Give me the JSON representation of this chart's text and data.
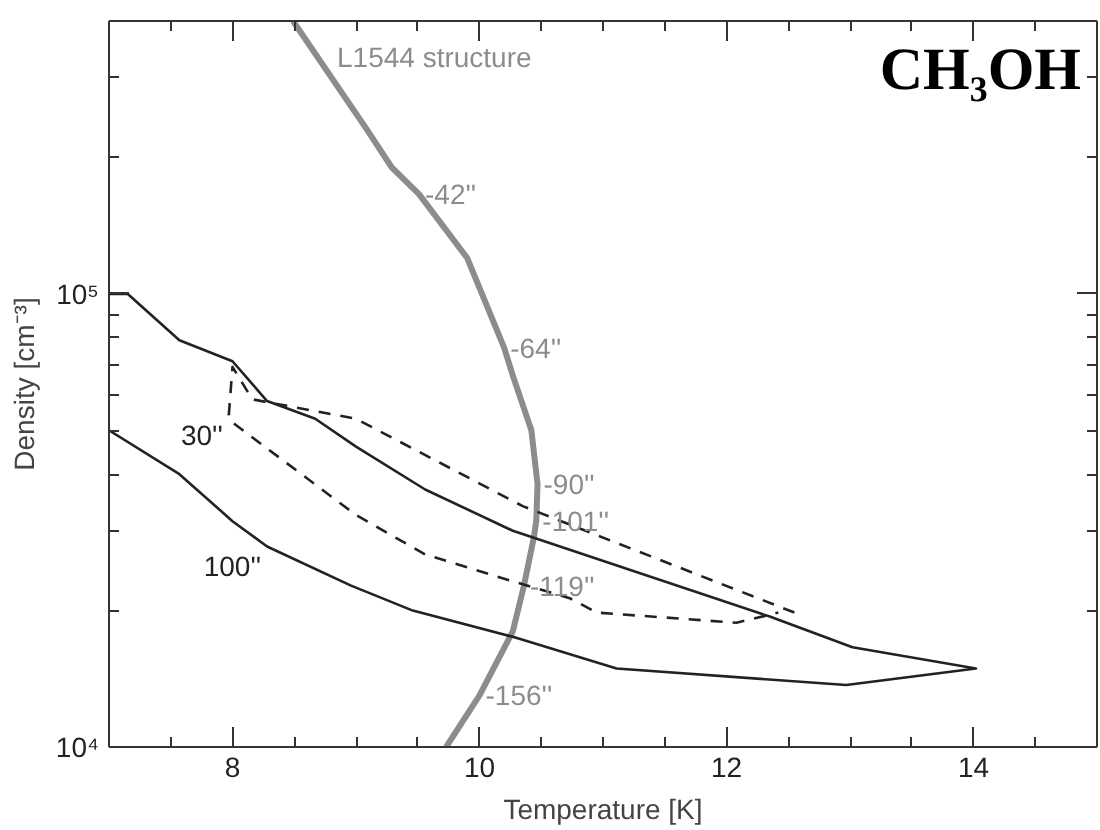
{
  "chart_data": {
    "type": "line",
    "xlabel": "Temperature [K]",
    "ylabel": "Density [cm⁻³]",
    "xlim": [
      7,
      15
    ],
    "ylim": [
      10000,
      400000
    ],
    "log": "y",
    "grid": false,
    "xticks": [
      {
        "value": 7.5,
        "label": null
      },
      8,
      {
        "value": 8.5,
        "label": null
      },
      {
        "value": 9,
        "label": null
      },
      {
        "value": 9.5,
        "label": null
      },
      10,
      {
        "value": 10.5,
        "label": null
      },
      {
        "value": 11,
        "label": null
      },
      {
        "value": 11.5,
        "label": null
      },
      12,
      {
        "value": 12.5,
        "label": null
      },
      {
        "value": 13,
        "label": null
      },
      {
        "value": 13.5,
        "label": null
      },
      14,
      {
        "value": 14.5,
        "label": null
      }
    ],
    "yticks": [
      {
        "value": 10000,
        "label": "10⁴"
      },
      {
        "value": 20000,
        "label": null
      },
      {
        "value": 30000,
        "label": null
      },
      {
        "value": 40000,
        "label": null
      },
      {
        "value": 50000,
        "label": null
      },
      {
        "value": 60000,
        "label": null
      },
      {
        "value": 70000,
        "label": null
      },
      {
        "value": 80000,
        "label": null
      },
      {
        "value": 90000,
        "label": null
      },
      {
        "value": 100000,
        "label": "10⁵"
      },
      {
        "value": 200000,
        "label": null
      },
      {
        "value": 300000,
        "label": null
      },
      {
        "value": 400000,
        "label": null
      }
    ],
    "series": [
      {
        "name": "L1544 structure",
        "color": "#8c8c8c",
        "x": [
          8.49,
          9.09,
          9.29,
          9.51,
          9.9,
          10.2,
          10.27,
          10.42,
          10.47,
          10.46,
          10.44,
          10.36,
          10.27,
          10.0,
          9.73
        ],
        "values": [
          400000,
          230000,
          190000,
          166000,
          120000,
          76000,
          66000,
          50000,
          38000,
          31600,
          29000,
          22700,
          18000,
          13000,
          10000
        ]
      },
      {
        "color": "#222222",
        "x": [
          7.0,
          7.15,
          7.57,
          8.0,
          8.28,
          8.67,
          9.0,
          9.56,
          10.27,
          12.35,
          13.02,
          14.02,
          12.97,
          11.11,
          10.27,
          9.46,
          8.96,
          8.28,
          8.0,
          7.57,
          7.0
        ],
        "values": [
          100000,
          100000,
          79000,
          71000,
          58000,
          53000,
          46000,
          37000,
          30000,
          19400,
          16600,
          14900,
          13700,
          14900,
          17500,
          20000,
          22700,
          27700,
          31500,
          40000,
          50000
        ]
      },
      {
        "color": "#222222",
        "line_style": "dashed",
        "x": [
          12.55,
          10.35,
          9.0,
          8.16,
          8.0,
          7.97,
          8.0,
          9.0,
          9.56,
          10.27,
          10.73,
          10.95,
          12.08,
          12.42
        ],
        "values": [
          19800,
          34000,
          53000,
          58500,
          69000,
          54000,
          52000,
          32500,
          26600,
          23200,
          21300,
          19800,
          18800,
          19800
        ]
      }
    ],
    "annotations": [
      "CH₃OH",
      {
        "text": "-42''",
        "x": 9.51,
        "y": 166000
      },
      {
        "text": "-64''",
        "x": 10.2,
        "y": 76000
      },
      {
        "text": "-90''",
        "x": 10.47,
        "y": 38000
      },
      {
        "text": "-101''",
        "x": 10.46,
        "y": 31600
      },
      {
        "text": "-119''",
        "x": 10.36,
        "y": 22700
      },
      {
        "text": "-156''",
        "x": 10.0,
        "y": 13000
      },
      {
        "text": "30''",
        "x": 7.97,
        "y": 54000
      },
      {
        "text": "100''",
        "x": 8.28,
        "y": 27700
      }
    ]
  }
}
